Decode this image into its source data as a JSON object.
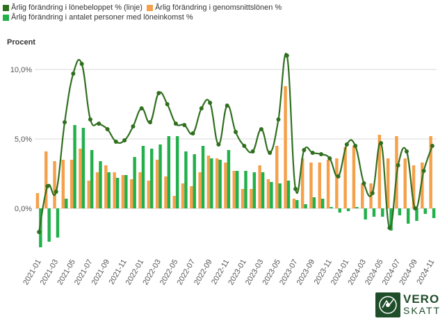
{
  "legend": {
    "line_label": "Årlig förändring i lönebeloppet % (linje)",
    "orange_label": "Årlig förändring i genomsnittslönen %",
    "green_label": "Årlig förändring i antalet personer med löneinkomst %"
  },
  "logo": {
    "top": "VERO",
    "bottom": "SKATT"
  },
  "colors": {
    "line": "#2f6f1e",
    "orange": "#f5a04a",
    "green": "#22b04b",
    "grid": "#d9d9d9",
    "text": "#555555"
  },
  "chart_data": {
    "type": "bar",
    "ylabel": "Procent",
    "ylim": [
      -3.5,
      11.5
    ],
    "yticks": [
      0,
      5,
      10
    ],
    "ytick_labels": [
      "0,0%",
      "5,0%",
      "10,0%"
    ],
    "categories": [
      "2021-01",
      "2021-02",
      "2021-03",
      "2021-04",
      "2021-05",
      "2021-06",
      "2021-07",
      "2021-08",
      "2021-09",
      "2021-10",
      "2021-11",
      "2021-12",
      "2022-01",
      "2022-02",
      "2022-03",
      "2022-04",
      "2022-05",
      "2022-06",
      "2022-07",
      "2022-08",
      "2022-09",
      "2022-10",
      "2022-11",
      "2022-12",
      "2023-01",
      "2023-02",
      "2023-03",
      "2023-04",
      "2023-05",
      "2023-06",
      "2023-07",
      "2023-08",
      "2023-09",
      "2023-10",
      "2023-11",
      "2023-12",
      "2024-01",
      "2024-02",
      "2024-03",
      "2024-04",
      "2024-05",
      "2024-06",
      "2024-07",
      "2024-08",
      "2024-09",
      "2024-10",
      "2024-11"
    ],
    "xtick_labels": [
      "2021-01",
      "2021-03",
      "2021-05",
      "2021-07",
      "2021-09",
      "2021-11",
      "2022-01",
      "2022-03",
      "2022-05",
      "2022-07",
      "2022-09",
      "2022-11",
      "2023-01",
      "2023-03",
      "2023-05",
      "2023-07",
      "2023-09",
      "2023-11",
      "2024-01",
      "2024-03",
      "2024-05",
      "2024-07",
      "2024-09",
      "2024-11"
    ],
    "series": [
      {
        "name": "Årlig förändring i genomsnittslönen %",
        "type": "bar",
        "values": [
          1.1,
          4.1,
          3.4,
          3.5,
          3.5,
          4.3,
          2.0,
          2.6,
          3.1,
          2.6,
          2.4,
          2.1,
          2.6,
          2.0,
          3.5,
          2.3,
          0.9,
          1.8,
          1.6,
          2.6,
          3.8,
          3.6,
          3.3,
          2.7,
          1.4,
          1.4,
          3.1,
          2.1,
          4.5,
          8.8,
          0.7,
          3.6,
          3.3,
          3.3,
          3.5,
          3.6,
          4.4,
          4.5,
          1.8,
          1.8,
          5.3,
          3.6,
          5.2,
          3.6,
          3.1,
          3.3,
          5.2
        ]
      },
      {
        "name": "Årlig förändring i antalet personer med löneinkomst %",
        "type": "bar",
        "values": [
          -2.8,
          -2.4,
          -2.1,
          0.7,
          6.0,
          5.8,
          4.2,
          3.4,
          2.6,
          2.2,
          2.4,
          3.7,
          4.5,
          4.3,
          4.6,
          5.2,
          5.2,
          4.1,
          3.9,
          4.5,
          3.6,
          3.5,
          4.2,
          2.7,
          2.7,
          2.6,
          2.6,
          1.9,
          1.8,
          2.0,
          0.6,
          0.3,
          0.8,
          0.7,
          0.1,
          -0.3,
          -0.2,
          0.1,
          -0.8,
          -0.6,
          -0.6,
          -1.6,
          -0.5,
          -1.1,
          -0.9,
          -0.4,
          -0.7
        ]
      },
      {
        "name": "Årlig förändring i lönebeloppet % (linje)",
        "type": "line",
        "values": [
          -1.7,
          1.6,
          1.2,
          6.2,
          9.7,
          10.4,
          6.4,
          6.1,
          5.7,
          4.8,
          4.9,
          5.9,
          7.2,
          6.2,
          8.3,
          7.5,
          6.1,
          6.0,
          5.4,
          7.2,
          7.6,
          4.6,
          7.4,
          5.5,
          4.5,
          4.1,
          5.7,
          4.0,
          6.4,
          11.0,
          1.4,
          4.2,
          4.0,
          3.9,
          3.6,
          2.3,
          4.6,
          4.5,
          1.8,
          1.1,
          4.7,
          -1.4,
          3.1,
          4.1,
          0.0,
          2.7,
          4.5
        ]
      }
    ]
  }
}
